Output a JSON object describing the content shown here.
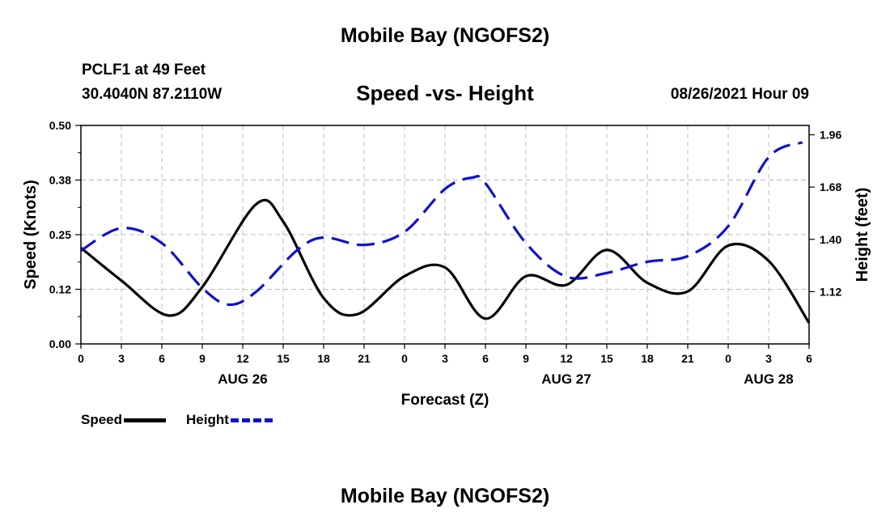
{
  "page": {
    "top_title": "Mobile Bay (NGOFS2)",
    "bottom_title": "Mobile Bay (NGOFS2)",
    "station": "PCLF1 at 49 Feet",
    "coords": "30.4040N  87.2110W",
    "timestamp": "08/26/2021 Hour 09"
  },
  "chart_data": {
    "type": "line",
    "title": "Speed -vs- Height",
    "xlabel": "Forecast (Z)",
    "ylabel_left": "Speed (Knots)",
    "ylabel_right": "Height (feet)",
    "grid": true,
    "legend_position": "bottom-left",
    "x_tick_labels": [
      "0",
      "3",
      "6",
      "9",
      "12",
      "15",
      "18",
      "21",
      "0",
      "3",
      "6",
      "9",
      "12",
      "15",
      "18",
      "21",
      "0",
      "3",
      "6"
    ],
    "date_labels": [
      {
        "text": "AUG 26",
        "hour": 12
      },
      {
        "text": "AUG 27",
        "hour": 36
      },
      {
        "text": "AUG 28",
        "hour": 51
      }
    ],
    "xlim": [
      0,
      54
    ],
    "ylim_left": [
      0,
      0.5
    ],
    "y_ticks_left": [
      {
        "value": 0,
        "label": "0.00"
      },
      {
        "value": 0.125,
        "label": "0.12"
      },
      {
        "value": 0.25,
        "label": "0.25"
      },
      {
        "value": 0.375,
        "label": "0.38"
      },
      {
        "value": 0.5,
        "label": "0.50"
      }
    ],
    "ylim_right": [
      0.84,
      2.01
    ],
    "y_ticks_right": [
      {
        "value": 1.12,
        "label": "1.12"
      },
      {
        "value": 1.4,
        "label": "1.40"
      },
      {
        "value": 1.68,
        "label": "1.68"
      },
      {
        "value": 1.96,
        "label": "1.96"
      }
    ],
    "series": [
      {
        "name": "Speed",
        "axis": "left",
        "color": "#000000",
        "style": "solid",
        "x": [
          0,
          3,
          6.5,
          9,
          13,
          15,
          18,
          20.5,
          24,
          27,
          30,
          33,
          36,
          39,
          42,
          45,
          48,
          51,
          54
        ],
        "values": [
          0.22,
          0.145,
          0.065,
          0.13,
          0.32,
          0.28,
          0.105,
          0.068,
          0.155,
          0.175,
          0.058,
          0.155,
          0.135,
          0.215,
          0.14,
          0.12,
          0.225,
          0.19,
          0.048
        ]
      },
      {
        "name": "Height",
        "axis": "right",
        "color": "#1111cc",
        "style": "dashed",
        "x": [
          0,
          3,
          6,
          9,
          11,
          13,
          16,
          18,
          21,
          24,
          27,
          29,
          30,
          33,
          36,
          39,
          42,
          45,
          48,
          51,
          53.5
        ],
        "values": [
          1.34,
          1.46,
          1.38,
          1.14,
          1.05,
          1.12,
          1.34,
          1.41,
          1.37,
          1.44,
          1.67,
          1.73,
          1.7,
          1.38,
          1.2,
          1.22,
          1.28,
          1.31,
          1.47,
          1.84,
          1.92
        ]
      }
    ]
  }
}
